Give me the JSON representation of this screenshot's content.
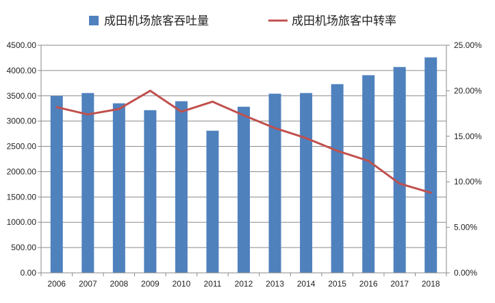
{
  "chart_data": {
    "type": "bar+line",
    "categories": [
      "2006",
      "2007",
      "2008",
      "2009",
      "2010",
      "2011",
      "2012",
      "2013",
      "2014",
      "2015",
      "2016",
      "2017",
      "2018"
    ],
    "series": [
      {
        "name": "成田机场旅客吞吐量",
        "type": "bar",
        "axis": "left",
        "color": "#4F81BD",
        "values": [
          3500,
          3555,
          3352,
          3216,
          3393,
          2810,
          3284,
          3542,
          3555,
          3731,
          3908,
          4070,
          4260
        ]
      },
      {
        "name": "成田机场旅客中转率",
        "type": "line",
        "axis": "right",
        "color": "#C0504D",
        "values": [
          18.2,
          17.4,
          18.0,
          20.0,
          17.7,
          18.8,
          17.3,
          15.9,
          14.8,
          13.4,
          12.3,
          9.8,
          8.8
        ]
      }
    ],
    "left_axis": {
      "ylim": [
        0,
        4500
      ],
      "ticks": [
        "0.00",
        "500.00",
        "1000.00",
        "1500.00",
        "2000.00",
        "2500.00",
        "3000.00",
        "3500.00",
        "4000.00",
        "4500.00"
      ]
    },
    "right_axis": {
      "ylim": [
        0,
        25
      ],
      "ticks": [
        "0.00%",
        "5.00%",
        "10.00%",
        "15.00%",
        "20.00%",
        "25.00%"
      ]
    },
    "grid": true,
    "legend_position": "top"
  }
}
